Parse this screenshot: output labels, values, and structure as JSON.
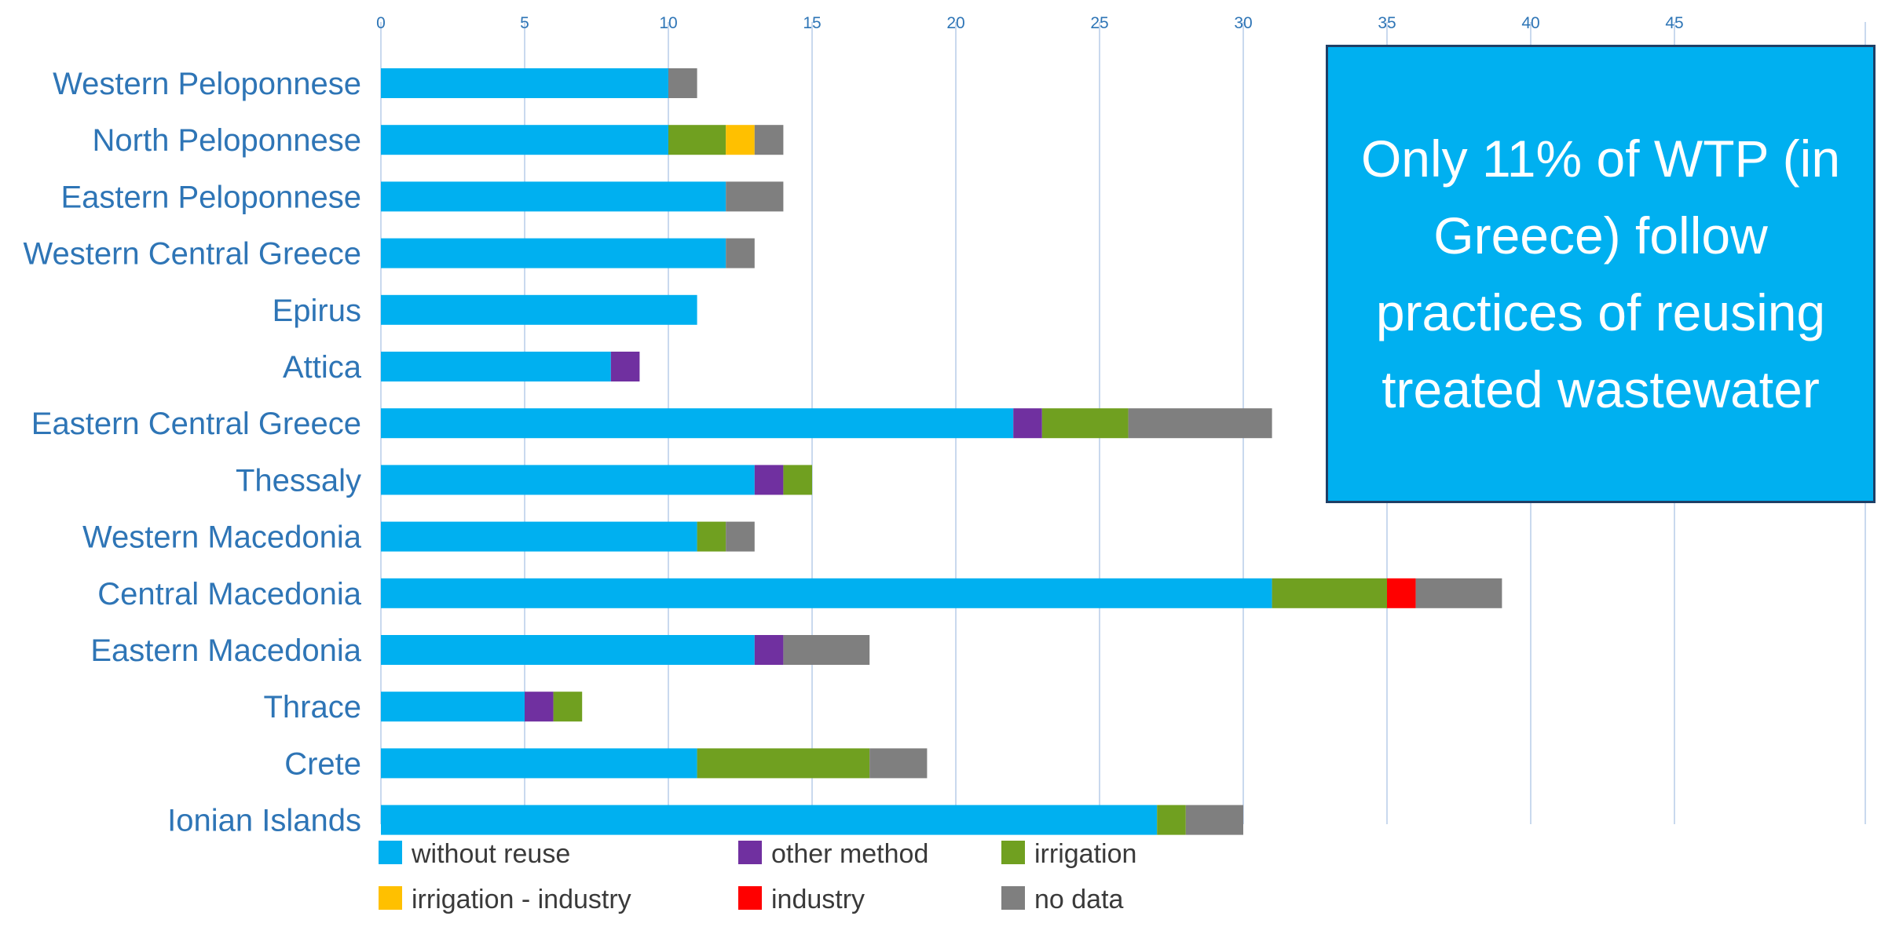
{
  "chart_data": {
    "type": "bar",
    "orientation": "horizontal",
    "stacked": true,
    "title": "",
    "xlabel": "",
    "ylabel": "",
    "xlim": [
      0,
      50
    ],
    "x_ticks": [
      0,
      5,
      10,
      15,
      20,
      25,
      30,
      35,
      40,
      45
    ],
    "grid": true,
    "legend_position": "bottom",
    "categories": [
      "Western Peloponnese",
      "North Peloponnese",
      "Eastern Peloponnese",
      "Western Central Greece",
      "Epirus",
      "Attica",
      "Eastern Central Greece",
      "Thessaly",
      "Western Macedonia",
      "Central Macedonia",
      "Eastern Macedonia",
      "Thrace",
      "Crete",
      "Ionian Islands"
    ],
    "series": [
      {
        "name": "without reuse",
        "color": "#00b0f0",
        "values": [
          10,
          10,
          12,
          12,
          11,
          8,
          22,
          13,
          11,
          31,
          13,
          5,
          11,
          27
        ]
      },
      {
        "name": "other method",
        "color": "#7030a0",
        "values": [
          0,
          0,
          0,
          0,
          0,
          1,
          1,
          1,
          0,
          0,
          1,
          1,
          0,
          0
        ]
      },
      {
        "name": "irrigation",
        "color": "#70a020",
        "values": [
          0,
          2,
          0,
          0,
          0,
          0,
          3,
          1,
          1,
          4,
          0,
          1,
          6,
          1
        ]
      },
      {
        "name": "irrigation - industry",
        "color": "#ffc000",
        "values": [
          0,
          1,
          0,
          0,
          0,
          0,
          0,
          0,
          0,
          0,
          0,
          0,
          0,
          0
        ]
      },
      {
        "name": "industry",
        "color": "#ff0000",
        "values": [
          0,
          0,
          0,
          0,
          0,
          0,
          0,
          0,
          0,
          1,
          0,
          0,
          0,
          0
        ]
      },
      {
        "name": "no data",
        "color": "#7f7f7f",
        "values": [
          1,
          1,
          2,
          1,
          0,
          0,
          5,
          0,
          1,
          3,
          3,
          0,
          2,
          2
        ]
      }
    ],
    "stack_order": [
      "without reuse",
      "other method",
      "irrigation",
      "irrigation - industry",
      "industry",
      "no data"
    ],
    "legend_order": [
      "without reuse",
      "other method",
      "irrigation",
      "irrigation - industry",
      "industry",
      "no data"
    ],
    "annotation": "Only 11% of WTP (in Greece) follow practices of reusing treated wastewater"
  }
}
